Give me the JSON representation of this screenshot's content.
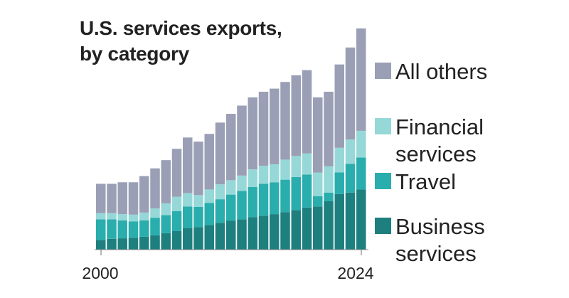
{
  "title_lines": [
    "U.S. services exports,",
    "by category"
  ],
  "chart_data": {
    "type": "bar",
    "stacked": true,
    "title": "U.S. services exports, by category",
    "categories": [
      "2000",
      "2001",
      "2002",
      "2003",
      "2004",
      "2005",
      "2006",
      "2007",
      "2008",
      "2009",
      "2010",
      "2011",
      "2012",
      "2013",
      "2014",
      "2015",
      "2016",
      "2017",
      "2018",
      "2019",
      "2020",
      "2021",
      "2022",
      "2023",
      "2024"
    ],
    "x_tick_labels": [
      "2000",
      "2024"
    ],
    "legend_placement": "right",
    "series": [
      {
        "name": "Business services",
        "color": "#1e7f7f",
        "values": [
          9.5,
          10.5,
          11,
          11.5,
          12.5,
          14,
          16,
          18,
          21,
          22,
          24,
          26,
          28,
          29.5,
          31.5,
          33,
          34.5,
          36.5,
          38.5,
          41,
          42,
          47,
          54,
          55.5,
          58.5
        ]
      },
      {
        "name": "Travel",
        "color": "#2aadad",
        "values": [
          20,
          19,
          17.5,
          16,
          16,
          17,
          17.5,
          19.5,
          21,
          19.5,
          21.5,
          23,
          25.5,
          27.5,
          29.5,
          31,
          31,
          31.5,
          32,
          32,
          10,
          8.5,
          21,
          28,
          31
        ]
      },
      {
        "name": "Financial services",
        "color": "#96d8d8",
        "values": [
          6,
          6,
          6,
          6.5,
          7.5,
          9,
          11.5,
          14,
          13,
          11.5,
          13,
          14.5,
          14,
          15,
          17,
          17.5,
          17.5,
          19.5,
          20.5,
          20.5,
          23,
          25.5,
          24,
          23.5,
          26
        ]
      },
      {
        "name": "All others",
        "color": "#9a9fb5",
        "values": [
          28.5,
          28.5,
          31,
          31.5,
          35.5,
          39,
          42,
          46.5,
          54,
          52,
          54,
          60,
          64.5,
          68,
          70,
          72,
          73.5,
          75.5,
          78.5,
          81,
          73,
          72.5,
          81,
          89.5,
          99.5
        ]
      }
    ],
    "xlabel": "",
    "ylabel": "",
    "ylim": [
      0,
      215
    ],
    "grid": false
  }
}
